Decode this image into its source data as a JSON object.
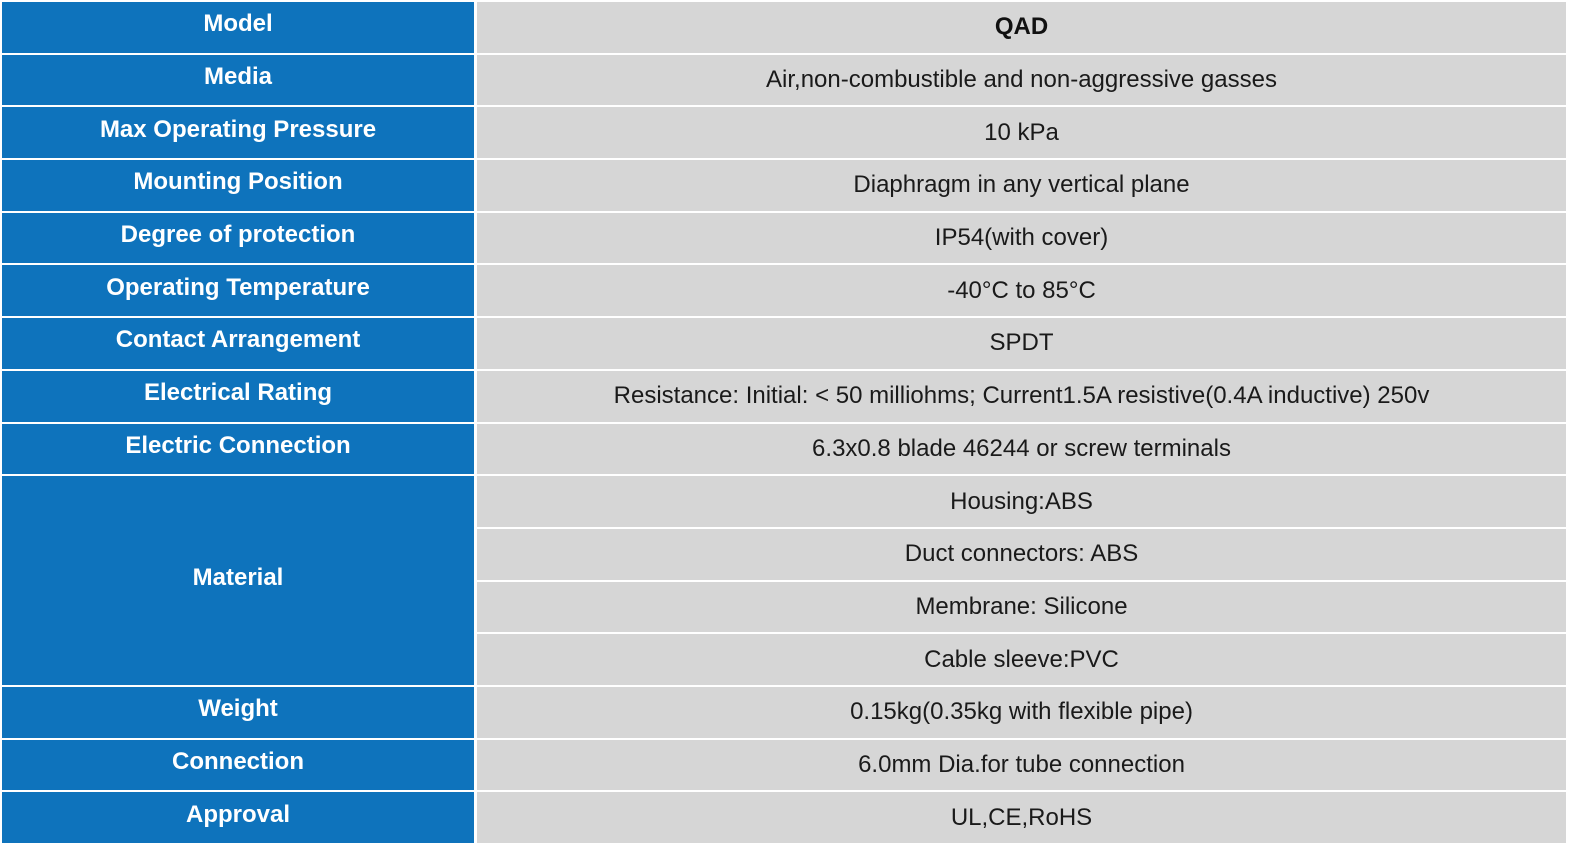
{
  "rows": [
    {
      "label": "Model",
      "value": "QAD"
    },
    {
      "label": "Media",
      "value": "Air,non-combustible and non-aggressive gasses"
    },
    {
      "label": "Max Operating Pressure",
      "value": "10 kPa"
    },
    {
      "label": "Mounting Position",
      "value": "Diaphragm in any vertical plane"
    },
    {
      "label": "Degree of protection",
      "value": "IP54(with cover)"
    },
    {
      "label": "Operating Temperature",
      "value": "-40°C to 85°C"
    },
    {
      "label": "Contact Arrangement",
      "value": "SPDT"
    },
    {
      "label": "Electrical Rating",
      "value": "Resistance: Initial: < 50 milliohms;  Current1.5A resistive(0.4A inductive) 250v"
    },
    {
      "label": "Electric Connection",
      "value": "6.3x0.8 blade 46244 or screw terminals"
    }
  ],
  "material": {
    "label": "Material",
    "values": [
      "Housing:ABS",
      "Duct connectors: ABS",
      "Membrane: Silicone",
      "Cable sleeve:PVC"
    ]
  },
  "tail_rows": [
    {
      "label": "Weight",
      "value": "0.15kg(0.35kg with flexible pipe)"
    },
    {
      "label": "Connection",
      "value": "6.0mm Dia.for tube connection"
    },
    {
      "label": "Approval",
      "value": "UL,CE,RoHS"
    }
  ]
}
